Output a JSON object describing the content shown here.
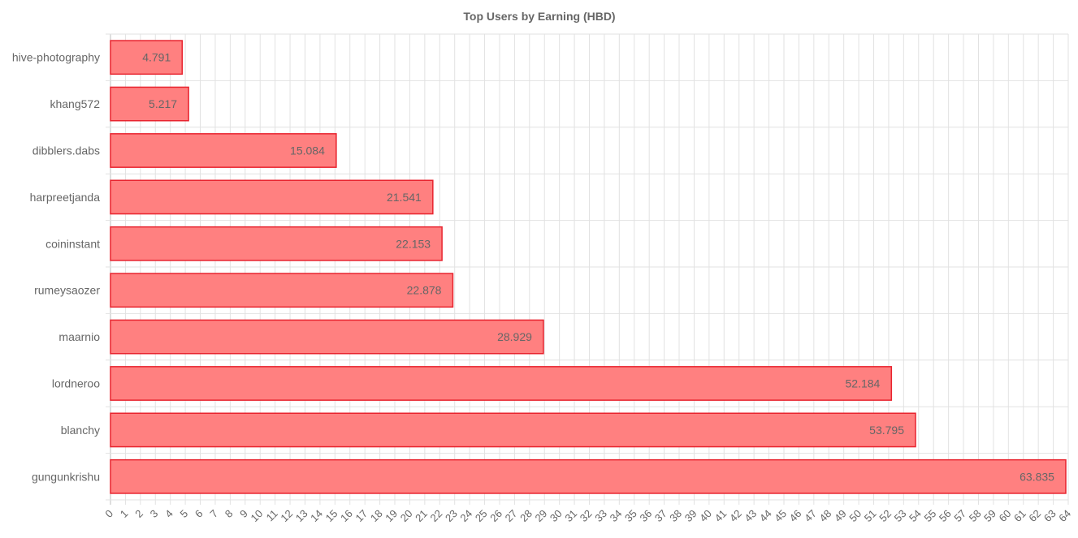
{
  "chart_data": {
    "type": "bar",
    "orientation": "horizontal",
    "title": "Top Users by Earning (HBD)",
    "categories": [
      "hive-photography",
      "khang572",
      "dibblers.dabs",
      "harpreetjanda",
      "coininstant",
      "rumeysaozer",
      "maarnio",
      "lordneroo",
      "blanchy",
      "gungunkrishu"
    ],
    "values": [
      4.791,
      5.217,
      15.084,
      21.541,
      22.153,
      22.878,
      28.929,
      52.184,
      53.795,
      63.835
    ],
    "value_labels": [
      "4.791",
      "5.217",
      "15.084",
      "21.541",
      "22.153",
      "22.878",
      "28.929",
      "52.184",
      "53.795",
      "63.835"
    ],
    "xlim": [
      0,
      64
    ],
    "xtick_step": 1,
    "grid": true,
    "colors": {
      "bar_fill": "#ff8080",
      "bar_stroke": "#e8232e"
    }
  }
}
